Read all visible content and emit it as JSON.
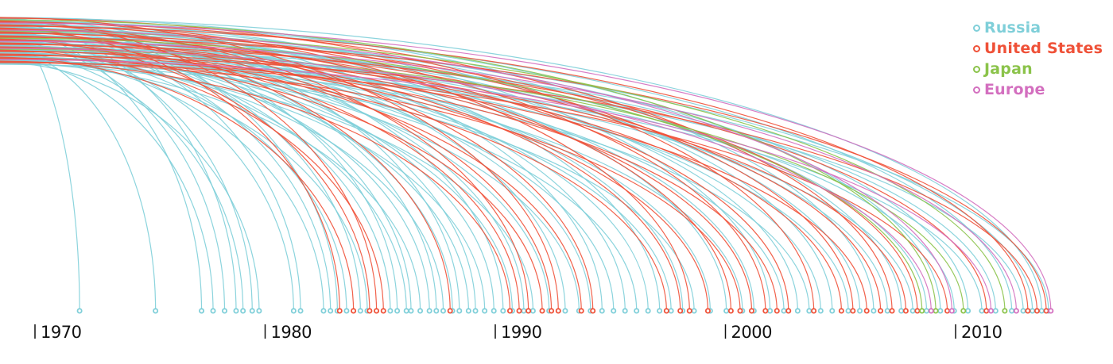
{
  "chart_data": {
    "type": "arc",
    "x_ticks": [
      "1970",
      "1980",
      "1990",
      "2000",
      "2010"
    ],
    "legend": [
      {
        "name": "Russia",
        "color": "#7fcfd9"
      },
      {
        "name": "United States",
        "color": "#ef5138"
      },
      {
        "name": "Japan",
        "color": "#8bc34a"
      },
      {
        "name": "Europe",
        "color": "#d36fbf"
      }
    ],
    "series": [
      {
        "name": "Russia",
        "color": "#7fcfd9",
        "launch_years": [
          1971.8,
          1975.1,
          1977.1,
          1977.6,
          1978.1,
          1978.6,
          1978.9,
          1979.3,
          1979.6,
          1981.1,
          1981.4,
          1982.4,
          1982.7,
          1983.0,
          1983.4,
          1984.0,
          1984.3,
          1985.3,
          1985.6,
          1986.0,
          1986.2,
          1986.6,
          1987.0,
          1987.3,
          1987.6,
          1988.0,
          1988.3,
          1988.7,
          1989.0,
          1989.4,
          1989.8,
          1990.2,
          1990.6,
          1991.1,
          1991.5,
          1992.2,
          1992.9,
          1993.5,
          1994.0,
          1994.5,
          1995.0,
          1995.5,
          1996.0,
          1996.5,
          1997.0,
          1997.5,
          1998.0,
          1998.5,
          1999.2,
          1999.9,
          2000.6,
          2001.1,
          2001.8,
          2002.4,
          2003.0,
          2003.5,
          2004.0,
          2004.5,
          2005.2,
          2005.7,
          2006.3,
          2006.9,
          2007.5,
          2008.0,
          2008.6,
          2009.2,
          2009.8,
          2010.4,
          2011.0,
          2011.6,
          2012.3,
          2012.8,
          2013.2,
          2013.6,
          2013.9
        ]
      },
      {
        "name": "United States",
        "color": "#ef5138",
        "launch_years": [
          1983.1,
          1983.7,
          1984.4,
          1984.7,
          1985.0,
          1987.9,
          1990.5,
          1990.9,
          1991.3,
          1991.9,
          1992.3,
          1992.6,
          1993.6,
          1994.1,
          1997.3,
          1997.9,
          1998.3,
          1999.1,
          2000.1,
          2000.5,
          2001.0,
          2001.6,
          2002.1,
          2002.6,
          2003.7,
          2004.9,
          2005.4,
          2006.0,
          2006.6,
          2007.1,
          2007.7,
          2008.2,
          2009.5,
          2011.2,
          2013.0,
          2013.4,
          2013.8
        ]
      },
      {
        "name": "Japan",
        "color": "#8bc34a",
        "launch_years": [
          2008.4,
          2009.0,
          2010.2,
          2012.0
        ]
      },
      {
        "name": "Europe",
        "color": "#d36fbf",
        "launch_years": [
          2008.8,
          2009.7,
          2011.4,
          2012.5,
          2014.0
        ]
      }
    ]
  }
}
